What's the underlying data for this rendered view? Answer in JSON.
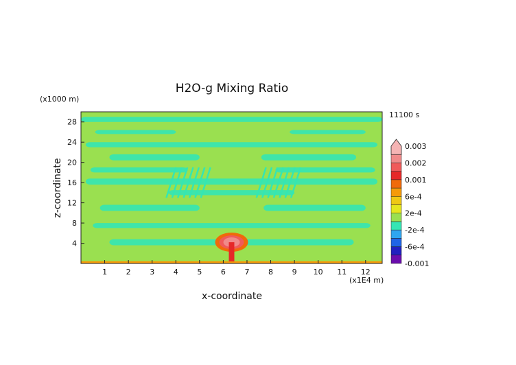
{
  "chart_data": {
    "type": "heatmap",
    "title": "H2O-g Mixing Ratio",
    "xlabel": "x-coordinate",
    "ylabel": "z-coordinate",
    "x_unit": "(x1E4 m)",
    "y_unit": "(x1000 m)",
    "time_label": "11100 s",
    "xlim": [
      0,
      12.7
    ],
    "ylim": [
      0,
      30
    ],
    "xticks": [
      1,
      2,
      3,
      4,
      5,
      6,
      7,
      8,
      9,
      10,
      11,
      12
    ],
    "yticks": [
      4,
      8,
      12,
      16,
      20,
      24,
      28
    ],
    "colorbar": {
      "levels": [
        -0.001,
        -0.0008,
        -0.0006,
        -0.0004,
        -0.0002,
        0,
        0.0002,
        0.0004,
        0.0006,
        0.0008,
        0.001,
        0.0015,
        0.002,
        0.0025,
        0.003
      ],
      "labels": [
        "-0.001",
        "-6e-4",
        "-2e-4",
        "2e-4",
        "6e-4",
        "0.001",
        "0.002",
        "0.003"
      ],
      "label_values": [
        -0.001,
        -0.0006,
        -0.0002,
        0.0002,
        0.0006,
        0.001,
        0.002,
        0.003
      ],
      "colors": [
        "#6a0dad",
        "#2020c0",
        "#1e64e6",
        "#2ea6f0",
        "#34e6b4",
        "#9ae050",
        "#e6e61e",
        "#f0c814",
        "#f59a0a",
        "#f06a0a",
        "#e62828",
        "#f05a5a",
        "#f08a8a",
        "#f5b4b4"
      ],
      "extend": "max"
    },
    "features": [
      {
        "kind": "plume-core",
        "x": 6.35,
        "z": 4.2,
        "value": 0.0022
      },
      {
        "kind": "surface-layer",
        "z": 0.2,
        "value": 0.0007
      },
      {
        "kind": "background",
        "value": 0.0001
      },
      {
        "kind": "banding",
        "value": -0.0002
      }
    ]
  }
}
